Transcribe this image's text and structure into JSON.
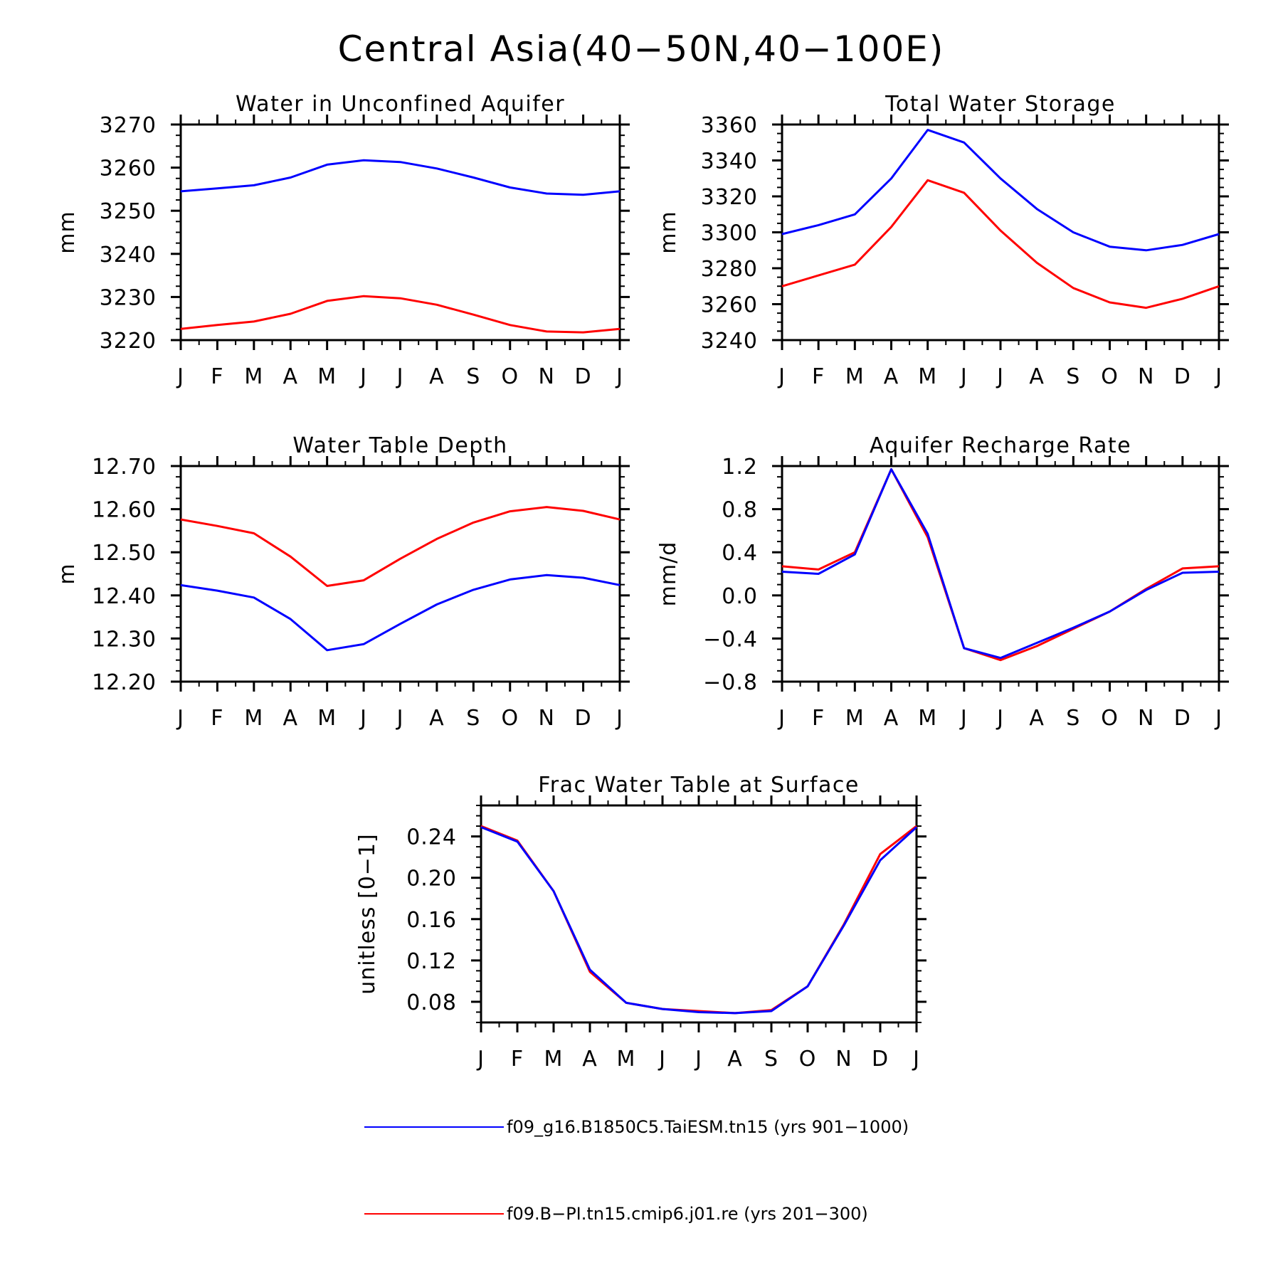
{
  "figure_title": "Central Asia(40−50N,40−100E)",
  "legend": [
    {
      "label": "f09_g16.B1850C5.TaiESM.tn15 (yrs 901−1000)",
      "color": "#0000ff"
    },
    {
      "label": "f09.B−PI.tn15.cmip6.j01.re (yrs 201−300)",
      "color": "#ff0000"
    }
  ],
  "chart_data": [
    {
      "type": "line",
      "title": "Water in Unconfined Aquifer",
      "ylabel": "mm",
      "categories": [
        "J",
        "F",
        "M",
        "A",
        "M",
        "J",
        "J",
        "A",
        "S",
        "O",
        "N",
        "D",
        "J"
      ],
      "ylim": [
        3220,
        3270
      ],
      "yticks": [
        3220,
        3230,
        3240,
        3250,
        3260,
        3270
      ],
      "ytick_labels": [
        "3220",
        "3230",
        "3240",
        "3250",
        "3260",
        "3270"
      ],
      "series": [
        {
          "color": "#0000ff",
          "values": [
            3254.5,
            3255.2,
            3255.9,
            3257.7,
            3260.7,
            3261.7,
            3261.3,
            3259.8,
            3257.7,
            3255.4,
            3254.0,
            3253.7,
            3254.5
          ]
        },
        {
          "color": "#ff0000",
          "values": [
            3222.6,
            3223.5,
            3224.3,
            3226.1,
            3229.1,
            3230.2,
            3229.7,
            3228.2,
            3225.9,
            3223.5,
            3222.0,
            3221.8,
            3222.6
          ]
        }
      ]
    },
    {
      "type": "line",
      "title": "Total Water Storage",
      "ylabel": "mm",
      "categories": [
        "J",
        "F",
        "M",
        "A",
        "M",
        "J",
        "J",
        "A",
        "S",
        "O",
        "N",
        "D",
        "J"
      ],
      "ylim": [
        3240,
        3360
      ],
      "yticks": [
        3240,
        3260,
        3280,
        3300,
        3320,
        3340,
        3360
      ],
      "ytick_labels": [
        "3240",
        "3260",
        "3280",
        "3300",
        "3320",
        "3340",
        "3360"
      ],
      "series": [
        {
          "color": "#0000ff",
          "values": [
            3299,
            3304,
            3310,
            3330,
            3357,
            3350,
            3330,
            3313,
            3300,
            3292,
            3290,
            3293,
            3299
          ]
        },
        {
          "color": "#ff0000",
          "values": [
            3270,
            3276,
            3282,
            3303,
            3329,
            3322,
            3301,
            3283,
            3269,
            3261,
            3258,
            3263,
            3270
          ]
        }
      ]
    },
    {
      "type": "line",
      "title": "Water Table Depth",
      "ylabel": "m",
      "categories": [
        "J",
        "F",
        "M",
        "A",
        "M",
        "J",
        "J",
        "A",
        "S",
        "O",
        "N",
        "D",
        "J"
      ],
      "ylim": [
        12.2,
        12.7
      ],
      "yticks": [
        12.2,
        12.3,
        12.4,
        12.5,
        12.6,
        12.7
      ],
      "ytick_labels": [
        "12.20",
        "12.30",
        "12.40",
        "12.50",
        "12.60",
        "12.70"
      ],
      "series": [
        {
          "color": "#0000ff",
          "values": [
            12.424,
            12.411,
            12.395,
            12.345,
            12.273,
            12.287,
            12.334,
            12.379,
            12.413,
            12.437,
            12.447,
            12.441,
            12.424
          ]
        },
        {
          "color": "#ff0000",
          "values": [
            12.576,
            12.561,
            12.544,
            12.49,
            12.422,
            12.435,
            12.485,
            12.531,
            12.569,
            12.595,
            12.605,
            12.596,
            12.576
          ]
        }
      ]
    },
    {
      "type": "line",
      "title": "Aquifer Recharge Rate",
      "ylabel": "mm/d",
      "categories": [
        "J",
        "F",
        "M",
        "A",
        "M",
        "J",
        "J",
        "A",
        "S",
        "O",
        "N",
        "D",
        "J"
      ],
      "ylim": [
        -0.8,
        1.2
      ],
      "yticks": [
        -0.8,
        -0.4,
        0.0,
        0.4,
        0.8,
        1.2
      ],
      "ytick_labels": [
        "−0.8",
        "−0.4",
        "0.0",
        "0.4",
        "0.8",
        "1.2"
      ],
      "series": [
        {
          "color": "#ff0000",
          "values": [
            0.27,
            0.24,
            0.4,
            1.17,
            0.54,
            -0.49,
            -0.6,
            -0.47,
            -0.31,
            -0.15,
            0.06,
            0.25,
            0.27
          ]
        },
        {
          "color": "#0000ff",
          "values": [
            0.22,
            0.2,
            0.38,
            1.17,
            0.57,
            -0.49,
            -0.58,
            -0.44,
            -0.3,
            -0.15,
            0.05,
            0.21,
            0.22
          ]
        }
      ]
    },
    {
      "type": "line",
      "title": "Frac Water Table at Surface",
      "ylabel": "unitless [0−1]",
      "categories": [
        "J",
        "F",
        "M",
        "A",
        "M",
        "J",
        "J",
        "A",
        "S",
        "O",
        "N",
        "D",
        "J"
      ],
      "ylim": [
        0.06,
        0.27
      ],
      "yticks": [
        0.08,
        0.12,
        0.16,
        0.2,
        0.24
      ],
      "ytick_labels": [
        "0.08",
        "0.12",
        "0.16",
        "0.20",
        "0.24"
      ],
      "series": [
        {
          "color": "#ff0000",
          "values": [
            0.25,
            0.236,
            0.187,
            0.109,
            0.079,
            0.073,
            0.071,
            0.069,
            0.072,
            0.095,
            0.155,
            0.223,
            0.25
          ]
        },
        {
          "color": "#0000ff",
          "values": [
            0.249,
            0.235,
            0.187,
            0.111,
            0.079,
            0.073,
            0.07,
            0.069,
            0.071,
            0.095,
            0.154,
            0.217,
            0.249
          ]
        }
      ]
    }
  ]
}
